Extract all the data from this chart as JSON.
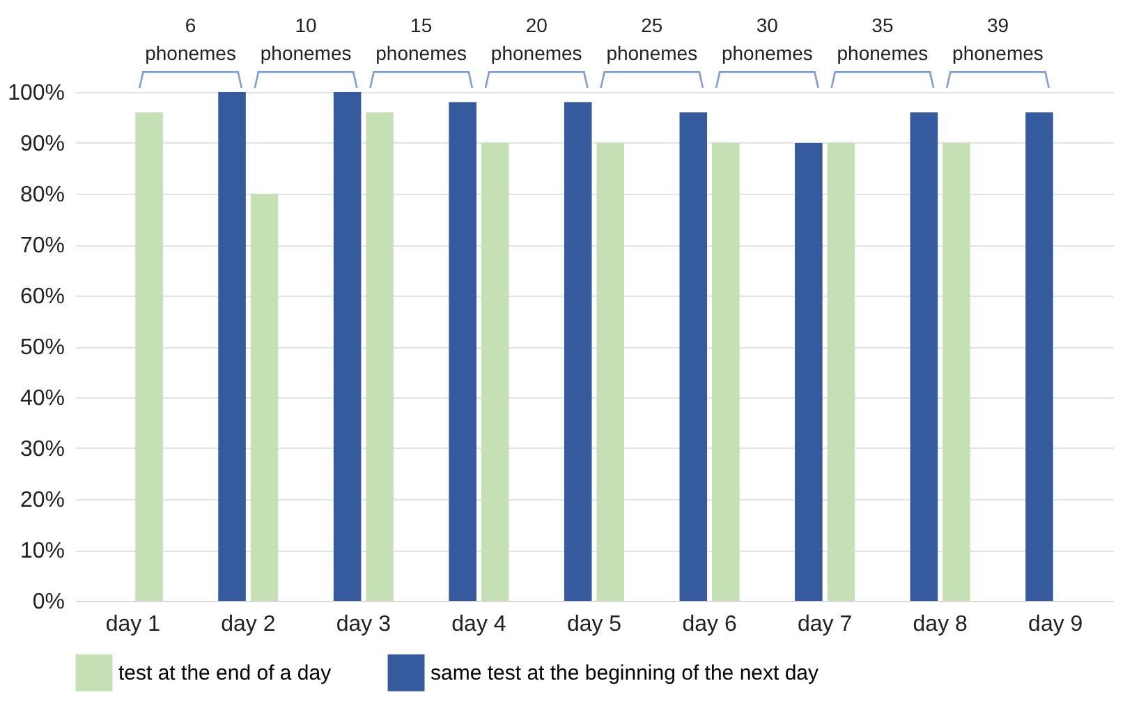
{
  "chart_data": {
    "type": "bar",
    "categories": [
      "day 1",
      "day 2",
      "day 3",
      "day 4",
      "day 5",
      "day 6",
      "day 7",
      "day 8",
      "day 9"
    ],
    "series": [
      {
        "name": "test at the end of a day",
        "color": "#c5e0b4",
        "values": [
          96,
          80,
          96,
          90,
          90,
          90,
          90,
          90,
          null
        ]
      },
      {
        "name": "same test at the beginning of the next day",
        "color": "#355a9e",
        "values": [
          null,
          100,
          100,
          98,
          98,
          96,
          90,
          96,
          96
        ]
      }
    ],
    "ylim": [
      0,
      100
    ],
    "yticks": [
      {
        "value": 0,
        "label": "0%"
      },
      {
        "value": 10,
        "label": "10%"
      },
      {
        "value": 20,
        "label": "20%"
      },
      {
        "value": 30,
        "label": "30%"
      },
      {
        "value": 40,
        "label": "40%"
      },
      {
        "value": 50,
        "label": "50%"
      },
      {
        "value": 60,
        "label": "60%"
      },
      {
        "value": 70,
        "label": "70%"
      },
      {
        "value": 80,
        "label": "80%"
      },
      {
        "value": 90,
        "label": "90%"
      },
      {
        "value": 100,
        "label": "100%"
      }
    ],
    "annotations": [
      "6\nphonemes",
      "10\nphonemes",
      "15\nphonemes",
      "20\nphonemes",
      "25\nphonemes",
      "30\nphonemes",
      "35\nphonemes",
      "39\nphonemes"
    ],
    "grid": "y",
    "legend": "bottom"
  }
}
